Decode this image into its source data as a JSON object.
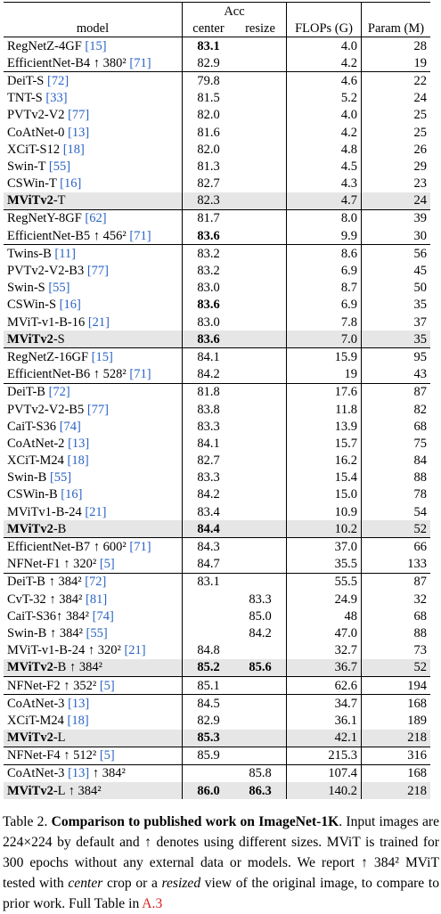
{
  "table": {
    "header": {
      "model": "model",
      "acc": "Acc",
      "center": "center",
      "resize": "resize",
      "flops": "FLOPs (G)",
      "params": "Param (M)"
    },
    "groups": [
      [
        {
          "name": "RegNetZ-4GF",
          "ref": "[15]",
          "center": "83.1",
          "resize": null,
          "flops": "4.0",
          "params": "28",
          "bold": [
            "center"
          ]
        },
        {
          "name": "EfficientNet-B4 ↑ 380²",
          "ref": "[71]",
          "center": "82.9",
          "resize": null,
          "flops": "4.2",
          "params": "19"
        }
      ],
      [
        {
          "name": "DeiT-S",
          "ref": "[72]",
          "center": "79.8",
          "resize": null,
          "flops": "4.6",
          "params": "22"
        },
        {
          "name": "TNT-S",
          "ref": "[33]",
          "center": "81.5",
          "resize": null,
          "flops": "5.2",
          "params": "24"
        },
        {
          "name": "PVTv2-V2",
          "ref": "[77]",
          "center": "82.0",
          "resize": null,
          "flops": "4.0",
          "params": "25"
        },
        {
          "name": "CoAtNet-0",
          "ref": "[13]",
          "center": "81.6",
          "resize": null,
          "flops": "4.2",
          "params": "25"
        },
        {
          "name": "XCiT-S12",
          "ref": "[18]",
          "center": "82.0",
          "resize": null,
          "flops": "4.8",
          "params": "26"
        },
        {
          "name": "Swin-T",
          "ref": "[55]",
          "center": "81.3",
          "resize": null,
          "flops": "4.5",
          "params": "29"
        },
        {
          "name": "CSWin-T",
          "ref": "[16]",
          "center": "82.7",
          "resize": null,
          "flops": "4.3",
          "params": "23"
        },
        {
          "name": "MViTv2",
          "ext": "-T",
          "center": "82.3",
          "resize": null,
          "flops": "4.7",
          "params": "24",
          "highlight": true
        }
      ],
      [
        {
          "name": "RegNetY-8GF",
          "ref": "[62]",
          "center": "81.7",
          "resize": null,
          "flops": "8.0",
          "params": "39"
        },
        {
          "name": "EfficientNet-B5 ↑ 456²",
          "ref": "[71]",
          "center": "83.6",
          "resize": null,
          "flops": "9.9",
          "params": "30",
          "bold": [
            "center"
          ]
        }
      ],
      [
        {
          "name": "Twins-B",
          "ref": "[11]",
          "center": "83.2",
          "resize": null,
          "flops": "8.6",
          "params": "56"
        },
        {
          "name": "PVTv2-V2-B3",
          "ref": "[77]",
          "center": "83.2",
          "resize": null,
          "flops": "6.9",
          "params": "45"
        },
        {
          "name": "Swin-S",
          "ref": "[55]",
          "center": "83.0",
          "resize": null,
          "flops": "8.7",
          "params": "50"
        },
        {
          "name": "CSWin-S",
          "ref": "[16]",
          "center": "83.6",
          "resize": null,
          "flops": "6.9",
          "params": "35",
          "bold": [
            "center"
          ]
        },
        {
          "name": "MViT-v1-B-16",
          "ref": "[21]",
          "center": "83.0",
          "resize": null,
          "flops": "7.8",
          "params": "37"
        },
        {
          "name": "MViTv2",
          "ext": "-S",
          "center": "83.6",
          "resize": null,
          "flops": "7.0",
          "params": "35",
          "highlight": true,
          "bold": [
            "center"
          ]
        }
      ],
      [
        {
          "name": "RegNetZ-16GF",
          "ref": "[15]",
          "center": "84.1",
          "resize": null,
          "flops": "15.9",
          "params": "95"
        },
        {
          "name": "EfficientNet-B6 ↑ 528²",
          "ref": "[71]",
          "center": "84.2",
          "resize": null,
          "flops": "19",
          "params": "43"
        }
      ],
      [
        {
          "name": "DeiT-B",
          "ref": "[72]",
          "center": "81.8",
          "resize": null,
          "flops": "17.6",
          "params": "87"
        },
        {
          "name": "PVTv2-V2-B5",
          "ref": "[77]",
          "center": "83.8",
          "resize": null,
          "flops": "11.8",
          "params": "82"
        },
        {
          "name": "CaiT-S36",
          "ref": "[74]",
          "center": "83.3",
          "resize": null,
          "flops": "13.9",
          "params": "68"
        },
        {
          "name": "CoAtNet-2",
          "ref": "[13]",
          "center": "84.1",
          "resize": null,
          "flops": "15.7",
          "params": "75"
        },
        {
          "name": "XCiT-M24",
          "ref": "[18]",
          "center": "82.7",
          "resize": null,
          "flops": "16.2",
          "params": "84"
        },
        {
          "name": "Swin-B",
          "ref": "[55]",
          "center": "83.3",
          "resize": null,
          "flops": "15.4",
          "params": "88"
        },
        {
          "name": "CSWin-B",
          "ref": "[16]",
          "center": "84.2",
          "resize": null,
          "flops": "15.0",
          "params": "78"
        },
        {
          "name": "MViTv1-B-24",
          "ref": "[21]",
          "center": "83.4",
          "resize": null,
          "flops": "10.9",
          "params": "54"
        },
        {
          "name": "MViTv2",
          "ext": "-B",
          "center": "84.4",
          "resize": null,
          "flops": "10.2",
          "params": "52",
          "highlight": true,
          "bold": [
            "center"
          ]
        }
      ],
      [
        {
          "name": "EfficientNet-B7 ↑ 600²",
          "ref": "[71]",
          "center": "84.3",
          "resize": null,
          "flops": "37.0",
          "params": "66"
        },
        {
          "name": "NFNet-F1 ↑ 320²",
          "ref": "[5]",
          "center": "84.7",
          "resize": null,
          "flops": "35.5",
          "params": "133"
        }
      ],
      [
        {
          "name": "DeiT-B ↑ 384²",
          "ref": "[72]",
          "center": "83.1",
          "resize": null,
          "flops": "55.5",
          "params": "87"
        },
        {
          "name": "CvT-32 ↑ 384²",
          "ref": "[81]",
          "center": null,
          "resize": "83.3",
          "flops": "24.9",
          "params": "32"
        },
        {
          "name": "CaiT-S36↑ 384²",
          "ref": "[74]",
          "center": null,
          "resize": "85.0",
          "flops": "48",
          "params": "68"
        },
        {
          "name": "Swin-B ↑ 384²",
          "ref": "[55]",
          "center": null,
          "resize": "84.2",
          "flops": "47.0",
          "params": "88"
        },
        {
          "name": "MViT-v1-B-24 ↑ 320²",
          "ref": "[21]",
          "center": "84.8",
          "resize": null,
          "flops": "32.7",
          "params": "73"
        },
        {
          "name": "MViTv2",
          "ext": "-B ↑ 384²",
          "center": "85.2",
          "resize": "85.6",
          "flops": "36.7",
          "params": "52",
          "highlight": true,
          "bold": [
            "center",
            "resize"
          ]
        }
      ],
      [
        {
          "name": "NFNet-F2 ↑ 352²",
          "ref": "[5]",
          "center": "85.1",
          "resize": null,
          "flops": "62.6",
          "params": "194"
        }
      ],
      [
        {
          "name": "CoAtNet-3",
          "ref": "[13]",
          "center": "84.5",
          "resize": null,
          "flops": "34.7",
          "params": "168"
        },
        {
          "name": "XCiT-M24",
          "ref": "[18]",
          "center": "82.9",
          "resize": null,
          "flops": "36.1",
          "params": "189"
        },
        {
          "name": "MViTv2",
          "ext": "-L",
          "center": "85.3",
          "resize": null,
          "flops": "42.1",
          "params": "218",
          "highlight": true,
          "bold": [
            "center"
          ]
        }
      ],
      [
        {
          "name": "NFNet-F4 ↑ 512²",
          "ref": "[5]",
          "center": "85.9",
          "resize": null,
          "flops": "215.3",
          "params": "316"
        }
      ],
      [
        {
          "name": "CoAtNet-3",
          "ref": "[13]",
          "post": " ↑ 384²",
          "center": null,
          "resize": "85.8",
          "flops": "107.4",
          "params": "168"
        },
        {
          "name": "MViTv2",
          "ext": "-L ↑ 384²",
          "center": "86.0",
          "resize": "86.3",
          "flops": "140.2",
          "params": "218",
          "highlight": true,
          "bold": [
            "center",
            "resize"
          ]
        }
      ]
    ]
  },
  "caption": {
    "segments": [
      {
        "text": "Table 2. ",
        "style": "normal"
      },
      {
        "text": "Comparison to published work on ImageNet-1K",
        "style": "bold"
      },
      {
        "text": ". Input images are 224×224 by default and ↑ denotes using different sizes. MViT is trained for 300 epochs without any external data or models. We report ↑ 384² MViT tested with ",
        "style": "normal"
      },
      {
        "text": "center",
        "style": "italic"
      },
      {
        "text": " crop or a ",
        "style": "normal"
      },
      {
        "text": "resized",
        "style": "italic"
      },
      {
        "text": " view of the original image, to compare to prior work. Full Table in ",
        "style": "normal"
      },
      {
        "text": "A.3",
        "style": "link"
      }
    ]
  }
}
